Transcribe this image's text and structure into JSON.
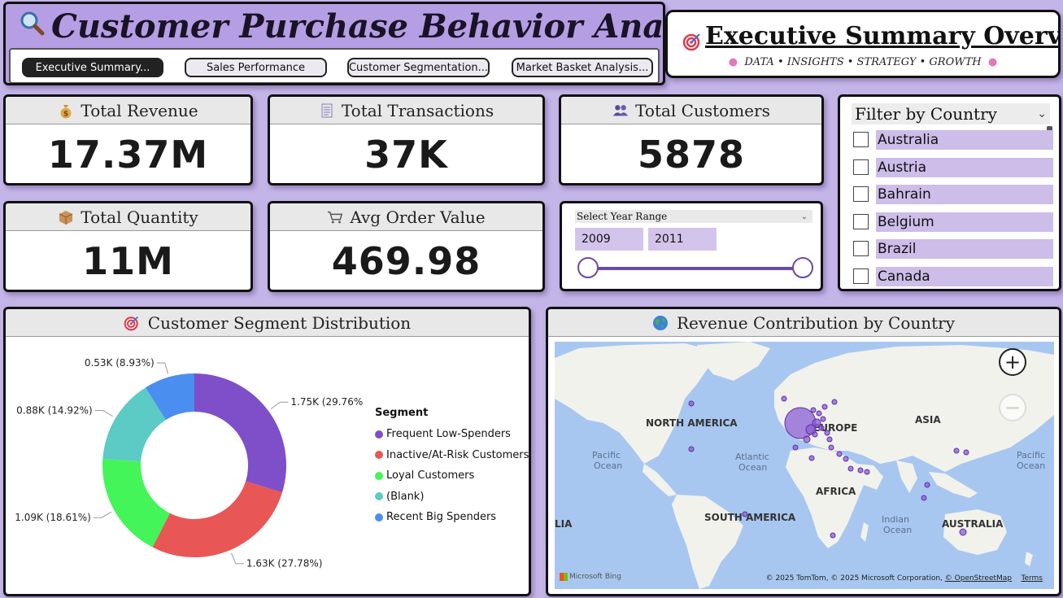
{
  "header": {
    "title": "Customer Purchase Behavior Analysis",
    "tabs": [
      {
        "label": "Executive Summary...",
        "active": true
      },
      {
        "label": "Sales Performance",
        "active": false
      },
      {
        "label": "Customer Segmentation...",
        "active": false
      },
      {
        "label": "Market Basket Analysis...",
        "active": false
      }
    ]
  },
  "exec": {
    "title": "Executive Summary Overview",
    "subtitle": "DATA • INSIGHTS • STRATEGY • GROWTH"
  },
  "kpis": {
    "revenue": {
      "label": "Total Revenue",
      "value": "17.37M"
    },
    "transactions": {
      "label": "Total Transactions",
      "value": "37K"
    },
    "customers": {
      "label": "Total Customers",
      "value": "5878"
    },
    "quantity": {
      "label": "Total Quantity",
      "value": "11M"
    },
    "aov": {
      "label": "Avg Order Value",
      "value": "469.98"
    }
  },
  "year_slicer": {
    "label": "Select Year Range",
    "start": "2009",
    "end": "2011"
  },
  "country_filter": {
    "label": "Filter by Country",
    "items": [
      "Australia",
      "Austria",
      "Bahrain",
      "Belgium",
      "Brazil",
      "Canada"
    ]
  },
  "donut": {
    "title": "Customer Segment Distribution",
    "legend_title": "Segment"
  },
  "map": {
    "title": "Revenue Contribution by Country",
    "labels": {
      "north_america": "NORTH AMERICA",
      "europe": "EUROPE",
      "asia": "ASIA",
      "africa": "AFRICA",
      "south_america": "SOUTH AMERICA",
      "australia": "AUSTRALIA",
      "lia": "LIA",
      "pacific_left": "Pacific Ocean",
      "atlantic": "Atlantic Ocean",
      "pacific_right": "Pacific Ocean",
      "indian": "Indian Ocean"
    },
    "zoom_in": "+",
    "zoom_out": "−",
    "attribution": "© 2025 TomTom, © 2025 Microsoft Corporation,",
    "attribution_link": "© OpenStreetMap",
    "terms": "Terms",
    "bing": "Microsoft Bing"
  },
  "chart_data": {
    "type": "pie",
    "title": "Customer Segment Distribution",
    "legend_title": "Segment",
    "legend_position": "right",
    "donut": true,
    "series": [
      {
        "name": "Frequent Low-Spenders",
        "value": 1.75,
        "label": "1.75K (29.76%)",
        "percent": 29.76,
        "color": "#7e4fc9"
      },
      {
        "name": "Inactive/At-Risk Customers",
        "value": 1.63,
        "label": "1.63K (27.78%)",
        "percent": 27.78,
        "color": "#e85656"
      },
      {
        "name": "Loyal Customers",
        "value": 1.09,
        "label": "1.09K (18.61%)",
        "percent": 18.61,
        "color": "#44f55a"
      },
      {
        "name": "(Blank)",
        "value": 0.88,
        "label": "0.88K (14.92%)",
        "percent": 14.92,
        "color": "#5ccac5"
      },
      {
        "name": "Recent Big Spenders",
        "value": 0.53,
        "label": "0.53K (8.93%)",
        "percent": 8.93,
        "color": "#4a8ef0"
      }
    ]
  }
}
